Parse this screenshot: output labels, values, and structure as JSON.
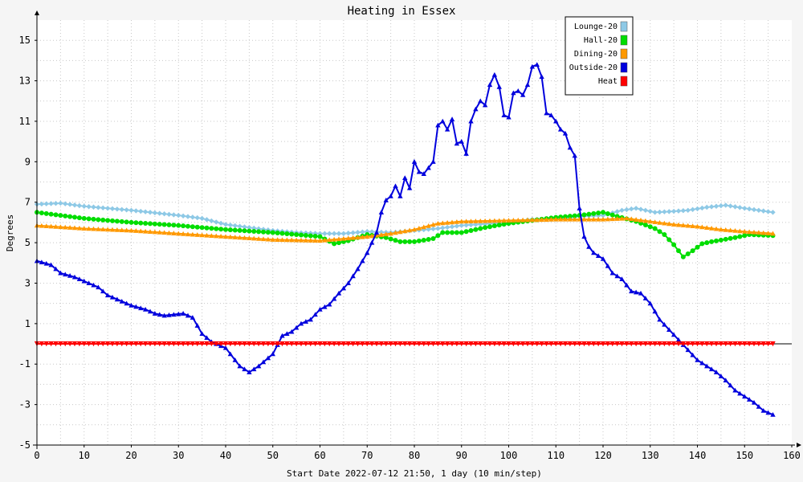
{
  "chart_data": {
    "type": "line",
    "title": "Heating in Essex",
    "xlabel": "Start Date 2022-07-12 21:50, 1 day (10 min/step)",
    "ylabel": "Degrees",
    "xlim": [
      0,
      160
    ],
    "ylim": [
      -5,
      16
    ],
    "xticks": [
      0,
      10,
      20,
      30,
      40,
      50,
      60,
      70,
      80,
      90,
      100,
      110,
      120,
      130,
      140,
      150,
      160
    ],
    "yticks": [
      -5,
      -3,
      -1,
      1,
      3,
      5,
      7,
      9,
      11,
      13,
      15
    ],
    "grid": true,
    "legend_position": "top-right",
    "series": [
      {
        "name": "Lounge-20",
        "color": "#8ec9e6",
        "marker": "diamond",
        "points": [
          [
            0,
            6.9
          ],
          [
            5,
            6.95
          ],
          [
            10,
            6.8
          ],
          [
            20,
            6.6
          ],
          [
            30,
            6.35
          ],
          [
            35,
            6.2
          ],
          [
            40,
            5.9
          ],
          [
            50,
            5.6
          ],
          [
            55,
            5.5
          ],
          [
            60,
            5.45
          ],
          [
            65,
            5.45
          ],
          [
            70,
            5.55
          ],
          [
            75,
            5.5
          ],
          [
            80,
            5.6
          ],
          [
            85,
            5.7
          ],
          [
            90,
            5.85
          ],
          [
            100,
            6.0
          ],
          [
            105,
            6.15
          ],
          [
            110,
            6.15
          ],
          [
            115,
            6.3
          ],
          [
            120,
            6.35
          ],
          [
            124,
            6.6
          ],
          [
            127,
            6.7
          ],
          [
            131,
            6.5
          ],
          [
            135,
            6.55
          ],
          [
            138,
            6.6
          ],
          [
            142,
            6.75
          ],
          [
            146,
            6.85
          ],
          [
            150,
            6.7
          ],
          [
            156,
            6.5
          ]
        ]
      },
      {
        "name": "Hall-20",
        "color": "#00dd00",
        "marker": "circle",
        "points": [
          [
            0,
            6.5
          ],
          [
            5,
            6.35
          ],
          [
            10,
            6.2
          ],
          [
            20,
            6.0
          ],
          [
            30,
            5.85
          ],
          [
            40,
            5.65
          ],
          [
            50,
            5.5
          ],
          [
            55,
            5.4
          ],
          [
            60,
            5.3
          ],
          [
            63,
            4.95
          ],
          [
            66,
            5.1
          ],
          [
            70,
            5.4
          ],
          [
            74,
            5.25
          ],
          [
            77,
            5.05
          ],
          [
            80,
            5.05
          ],
          [
            84,
            5.2
          ],
          [
            86,
            5.5
          ],
          [
            90,
            5.5
          ],
          [
            95,
            5.75
          ],
          [
            100,
            5.95
          ],
          [
            105,
            6.1
          ],
          [
            110,
            6.25
          ],
          [
            115,
            6.35
          ],
          [
            120,
            6.5
          ],
          [
            123,
            6.3
          ],
          [
            127,
            6.05
          ],
          [
            131,
            5.7
          ],
          [
            133,
            5.4
          ],
          [
            135,
            4.9
          ],
          [
            137,
            4.3
          ],
          [
            139,
            4.6
          ],
          [
            141,
            4.95
          ],
          [
            143,
            5.05
          ],
          [
            148,
            5.25
          ],
          [
            151,
            5.4
          ],
          [
            156,
            5.35
          ]
        ]
      },
      {
        "name": "Dining-20",
        "color": "#ff9900",
        "marker": "triangle",
        "points": [
          [
            0,
            5.85
          ],
          [
            10,
            5.7
          ],
          [
            20,
            5.6
          ],
          [
            30,
            5.45
          ],
          [
            40,
            5.3
          ],
          [
            50,
            5.15
          ],
          [
            60,
            5.1
          ],
          [
            65,
            5.2
          ],
          [
            70,
            5.3
          ],
          [
            75,
            5.45
          ],
          [
            80,
            5.65
          ],
          [
            85,
            5.95
          ],
          [
            90,
            6.05
          ],
          [
            100,
            6.1
          ],
          [
            110,
            6.15
          ],
          [
            115,
            6.15
          ],
          [
            120,
            6.15
          ],
          [
            125,
            6.2
          ],
          [
            130,
            6.05
          ],
          [
            135,
            5.9
          ],
          [
            140,
            5.8
          ],
          [
            145,
            5.65
          ],
          [
            150,
            5.55
          ],
          [
            156,
            5.45
          ]
        ]
      },
      {
        "name": "Outside-20",
        "color": "#0000dd",
        "marker": "triangle",
        "points": [
          [
            0,
            4.1
          ],
          [
            3,
            3.9
          ],
          [
            5,
            3.5
          ],
          [
            8,
            3.3
          ],
          [
            10,
            3.1
          ],
          [
            13,
            2.8
          ],
          [
            15,
            2.4
          ],
          [
            18,
            2.1
          ],
          [
            20,
            1.9
          ],
          [
            23,
            1.7
          ],
          [
            25,
            1.5
          ],
          [
            27,
            1.4
          ],
          [
            29,
            1.45
          ],
          [
            31,
            1.5
          ],
          [
            33,
            1.3
          ],
          [
            35,
            0.5
          ],
          [
            37,
            0.1
          ],
          [
            40,
            -0.2
          ],
          [
            43,
            -1.1
          ],
          [
            45,
            -1.4
          ],
          [
            47,
            -1.1
          ],
          [
            50,
            -0.5
          ],
          [
            52,
            0.4
          ],
          [
            54,
            0.6
          ],
          [
            56,
            1.0
          ],
          [
            58,
            1.2
          ],
          [
            60,
            1.7
          ],
          [
            62,
            1.95
          ],
          [
            64,
            2.5
          ],
          [
            66,
            3.0
          ],
          [
            68,
            3.7
          ],
          [
            70,
            4.5
          ],
          [
            72,
            5.5
          ],
          [
            73,
            6.5
          ],
          [
            74,
            7.1
          ],
          [
            75,
            7.3
          ],
          [
            76,
            7.8
          ],
          [
            77,
            7.3
          ],
          [
            78,
            8.2
          ],
          [
            79,
            7.7
          ],
          [
            80,
            9.0
          ],
          [
            81,
            8.5
          ],
          [
            82,
            8.4
          ],
          [
            84,
            9.0
          ],
          [
            85,
            10.8
          ],
          [
            86,
            11.0
          ],
          [
            87,
            10.6
          ],
          [
            88,
            11.1
          ],
          [
            89,
            9.9
          ],
          [
            90,
            10.0
          ],
          [
            91,
            9.4
          ],
          [
            92,
            11.0
          ],
          [
            93,
            11.6
          ],
          [
            94,
            12.0
          ],
          [
            95,
            11.8
          ],
          [
            96,
            12.8
          ],
          [
            97,
            13.3
          ],
          [
            98,
            12.7
          ],
          [
            99,
            11.3
          ],
          [
            100,
            11.2
          ],
          [
            101,
            12.4
          ],
          [
            102,
            12.5
          ],
          [
            103,
            12.3
          ],
          [
            104,
            12.8
          ],
          [
            105,
            13.7
          ],
          [
            106,
            13.8
          ],
          [
            107,
            13.2
          ],
          [
            108,
            11.4
          ],
          [
            109,
            11.3
          ],
          [
            110,
            11.0
          ],
          [
            111,
            10.6
          ],
          [
            112,
            10.4
          ],
          [
            113,
            9.7
          ],
          [
            114,
            9.3
          ],
          [
            115,
            6.7
          ],
          [
            116,
            5.3
          ],
          [
            117,
            4.8
          ],
          [
            118,
            4.5
          ],
          [
            120,
            4.2
          ],
          [
            122,
            3.5
          ],
          [
            124,
            3.2
          ],
          [
            126,
            2.6
          ],
          [
            128,
            2.5
          ],
          [
            130,
            2.0
          ],
          [
            132,
            1.2
          ],
          [
            134,
            0.7
          ],
          [
            136,
            0.2
          ],
          [
            138,
            -0.3
          ],
          [
            140,
            -0.8
          ],
          [
            142,
            -1.1
          ],
          [
            144,
            -1.4
          ],
          [
            146,
            -1.8
          ],
          [
            148,
            -2.3
          ],
          [
            150,
            -2.6
          ],
          [
            152,
            -2.9
          ],
          [
            154,
            -3.3
          ],
          [
            156,
            -3.5
          ]
        ]
      },
      {
        "name": "Heat",
        "color": "#ff0000",
        "marker": "triangle-down",
        "points": [
          [
            0,
            0
          ],
          [
            156,
            0
          ]
        ]
      }
    ]
  }
}
